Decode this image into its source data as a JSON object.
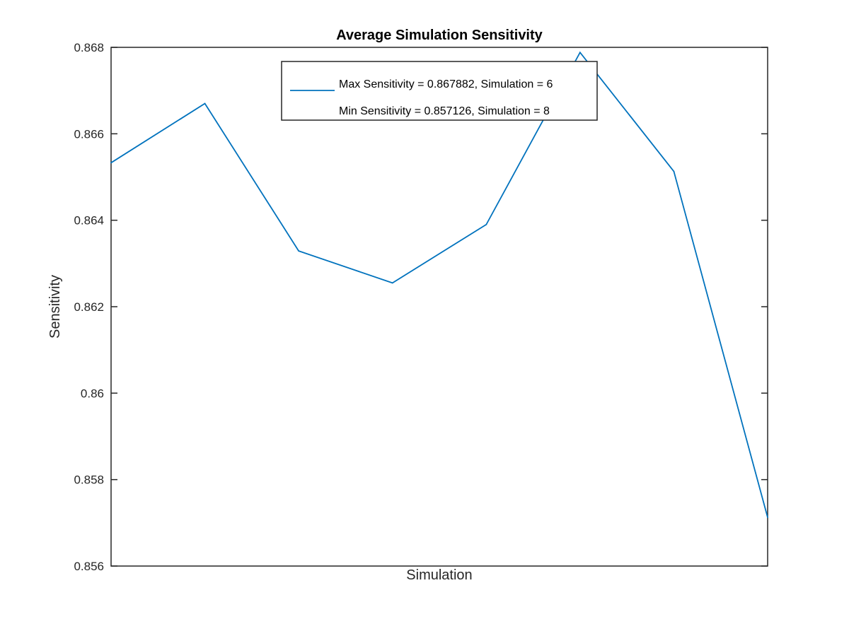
{
  "chart_data": {
    "type": "line",
    "title": "Average Simulation Sensitivity",
    "xlabel": "Simulation",
    "ylabel": "Sensitivity",
    "x": [
      1,
      2,
      3,
      4,
      5,
      6,
      7,
      8
    ],
    "series": [
      {
        "values": [
          0.86533,
          0.8667,
          0.86329,
          0.86255,
          0.8639,
          0.867882,
          0.86513,
          0.857126
        ],
        "color": "#0072BD"
      }
    ],
    "xlim": [
      1,
      8
    ],
    "ylim": [
      0.856,
      0.868
    ],
    "yticks": [
      "0.856",
      "0.858",
      "0.86",
      "0.862",
      "0.864",
      "0.866",
      "0.868"
    ],
    "xticks_shown": false,
    "grid": false,
    "legend": {
      "placement": "top-center",
      "entries": [
        "Max Sensitivity = 0.867882, Simulation = 6",
        "Min Sensitivity = 0.857126, Simulation = 8"
      ]
    }
  }
}
